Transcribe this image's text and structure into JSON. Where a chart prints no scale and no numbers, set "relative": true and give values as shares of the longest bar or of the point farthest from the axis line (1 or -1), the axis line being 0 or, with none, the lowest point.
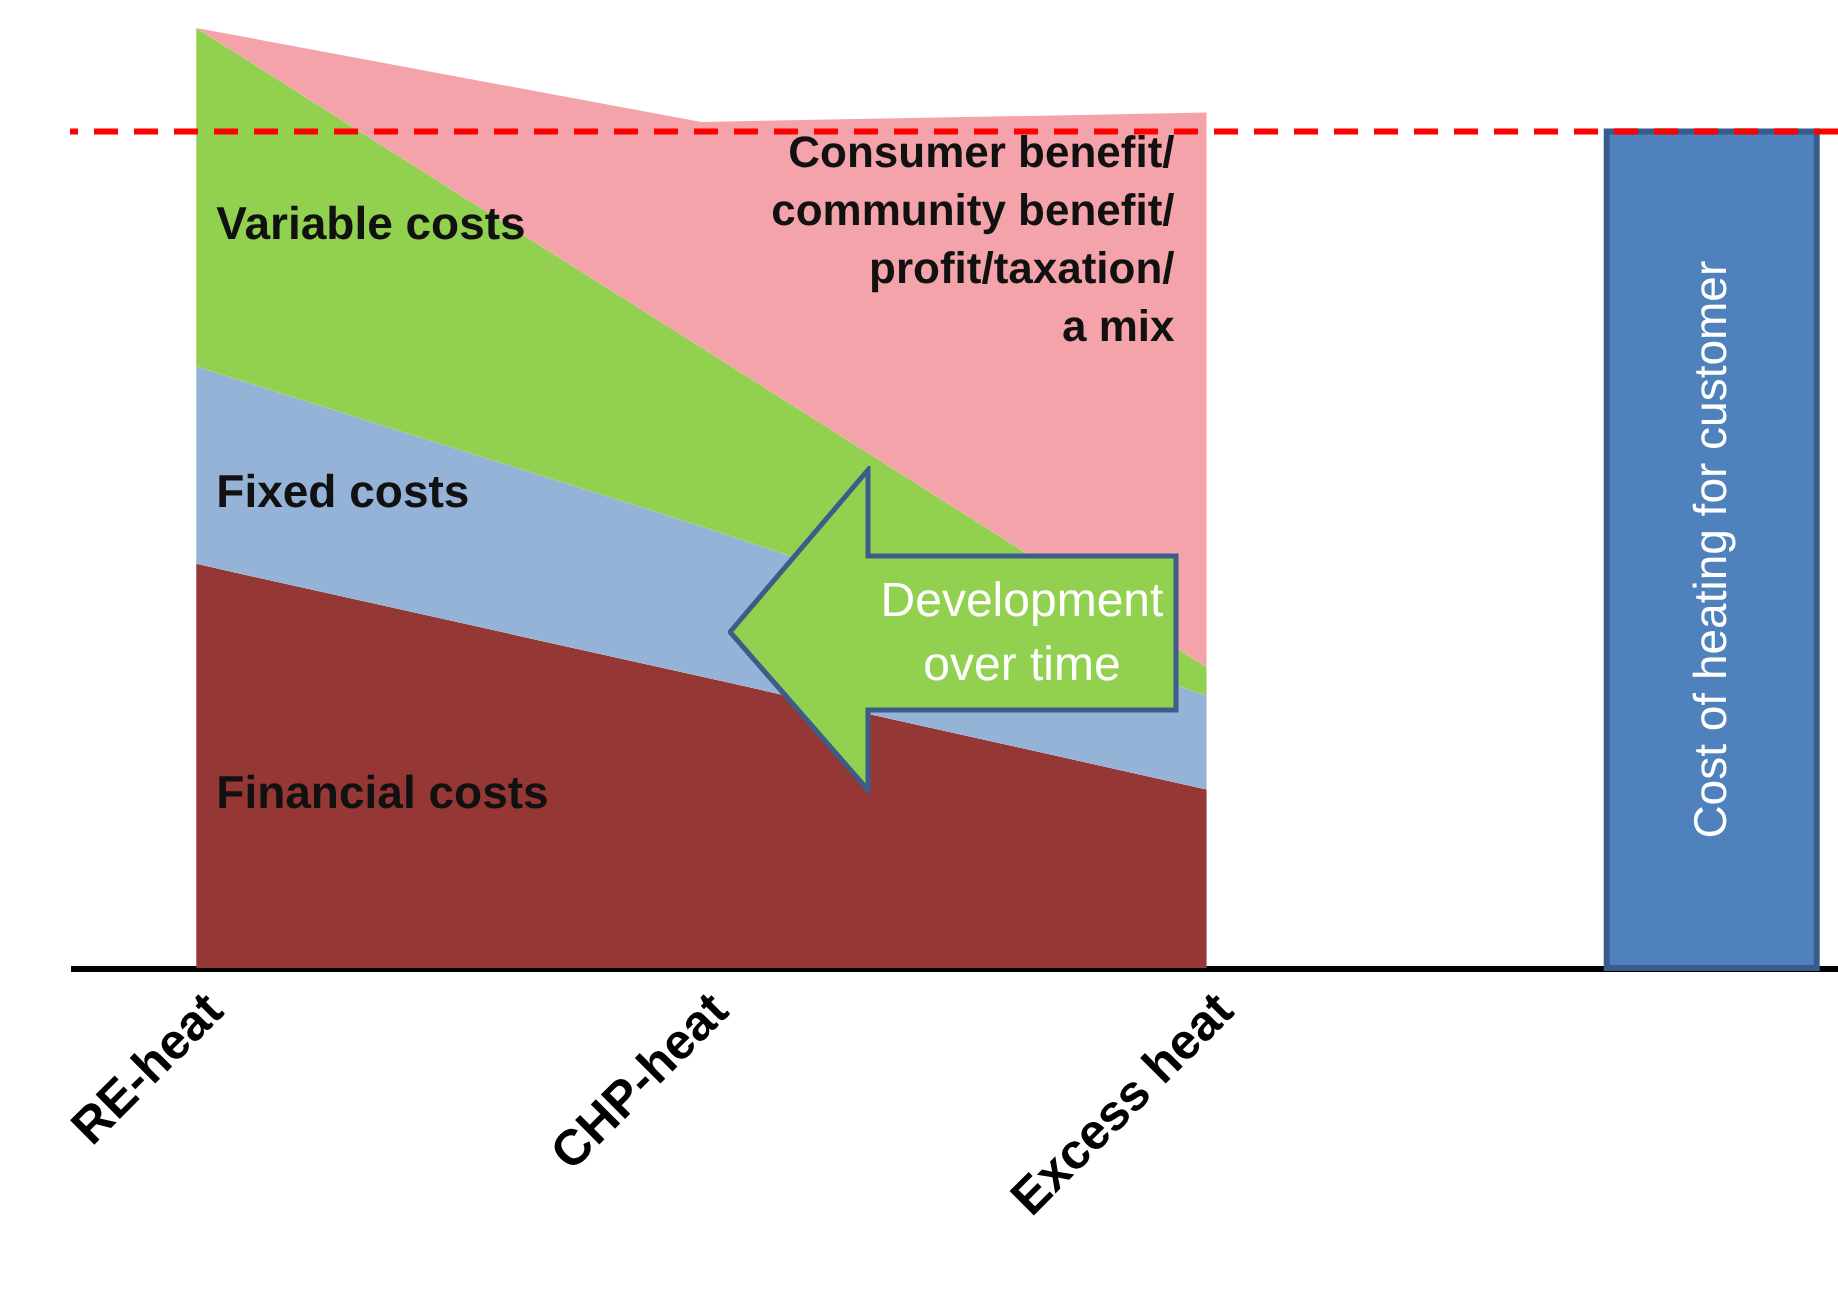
{
  "chart_data": {
    "type": "area",
    "relative": true,
    "stacked": true,
    "grid": false,
    "categories": [
      "RE-heat",
      "CHP-heat",
      "Excess heat",
      null
    ],
    "series": [
      {
        "name": "Financial costs",
        "color": "#953735",
        "values": [
          0.43,
          0.31,
          0.19,
          null
        ]
      },
      {
        "name": "Fixed costs",
        "color": "#95b3d7",
        "values": [
          0.21,
          0.16,
          0.1,
          null
        ]
      },
      {
        "name": "Variable costs",
        "color": "#92d050",
        "values": [
          0.36,
          0.19,
          0.03,
          null
        ]
      },
      {
        "name": "Consumer benefit/ community benefit/ profit/taxation/ a mix",
        "color": "#f4a3ab",
        "values": [
          0,
          0.24,
          0.59,
          null
        ]
      },
      {
        "name": "Cost of heating for customer",
        "type": "bar",
        "color": "#4f81bd",
        "values": [
          null,
          null,
          null,
          0.89
        ]
      }
    ],
    "ref_lines": [
      {
        "axis": "y",
        "value": 0.89,
        "color": "#ff0000",
        "line_style": "dashed"
      }
    ],
    "annotations": [
      "Development over time"
    ]
  }
}
